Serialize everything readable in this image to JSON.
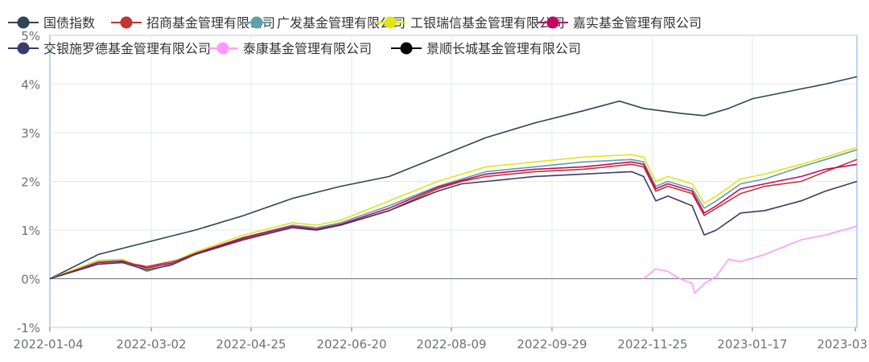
{
  "chart_data": {
    "type": "line",
    "title": "",
    "xlabel": "",
    "ylabel": "",
    "x_ticks": [
      "2022-01-04",
      "2022-03-02",
      "2022-04-25",
      "2022-06-20",
      "2022-08-09",
      "2022-09-29",
      "2022-11-25",
      "2023-01-17",
      "2023-03"
    ],
    "y_ticks": [
      "5%",
      "4%",
      "3%",
      "2%",
      "1%",
      "0%",
      "-1%"
    ],
    "ylim": [
      -1,
      5
    ],
    "y_unit": "%",
    "grid": true,
    "legend_position": "top-left",
    "series": [
      {
        "name": "国债指数",
        "color": "#2f4554",
        "points": [
          [
            0,
            0
          ],
          [
            20,
            0.5
          ],
          [
            40,
            0.75
          ],
          [
            60,
            1.0
          ],
          [
            80,
            1.3
          ],
          [
            100,
            1.65
          ],
          [
            120,
            1.9
          ],
          [
            140,
            2.1
          ],
          [
            160,
            2.5
          ],
          [
            180,
            2.9
          ],
          [
            200,
            3.2
          ],
          [
            220,
            3.45
          ],
          [
            235,
            3.65
          ],
          [
            245,
            3.5
          ],
          [
            260,
            3.4
          ],
          [
            270,
            3.35
          ],
          [
            280,
            3.5
          ],
          [
            290,
            3.7
          ],
          [
            300,
            3.8
          ],
          [
            310,
            3.9
          ],
          [
            320,
            4.0
          ],
          [
            333,
            4.15
          ]
        ]
      },
      {
        "name": "招商基金管理有限公司",
        "color": "#c23531",
        "points": [
          [
            0,
            0
          ],
          [
            20,
            0.35
          ],
          [
            30,
            0.35
          ],
          [
            40,
            0.25
          ],
          [
            50,
            0.35
          ],
          [
            60,
            0.5
          ],
          [
            80,
            0.8
          ],
          [
            100,
            1.05
          ],
          [
            110,
            1.0
          ],
          [
            120,
            1.1
          ],
          [
            140,
            1.4
          ],
          [
            160,
            1.85
          ],
          [
            170,
            2.0
          ],
          [
            180,
            2.1
          ],
          [
            200,
            2.2
          ],
          [
            220,
            2.25
          ],
          [
            240,
            2.35
          ],
          [
            245,
            2.3
          ],
          [
            250,
            1.8
          ],
          [
            255,
            1.9
          ],
          [
            265,
            1.75
          ],
          [
            270,
            1.3
          ],
          [
            275,
            1.45
          ],
          [
            285,
            1.75
          ],
          [
            295,
            1.9
          ],
          [
            310,
            2.0
          ],
          [
            320,
            2.2
          ],
          [
            333,
            2.45
          ]
        ]
      },
      {
        "name": "广发基金管理有限公司",
        "color": "#61a0a8",
        "points": [
          [
            0,
            0
          ],
          [
            20,
            0.35
          ],
          [
            30,
            0.38
          ],
          [
            40,
            0.15
          ],
          [
            50,
            0.3
          ],
          [
            60,
            0.5
          ],
          [
            80,
            0.85
          ],
          [
            100,
            1.1
          ],
          [
            110,
            1.05
          ],
          [
            120,
            1.15
          ],
          [
            140,
            1.5
          ],
          [
            160,
            1.9
          ],
          [
            170,
            2.05
          ],
          [
            180,
            2.2
          ],
          [
            200,
            2.3
          ],
          [
            220,
            2.4
          ],
          [
            240,
            2.45
          ],
          [
            245,
            2.4
          ],
          [
            250,
            1.9
          ],
          [
            255,
            2.0
          ],
          [
            265,
            1.85
          ],
          [
            270,
            1.45
          ],
          [
            275,
            1.6
          ],
          [
            285,
            1.95
          ],
          [
            295,
            2.05
          ],
          [
            310,
            2.3
          ],
          [
            320,
            2.45
          ],
          [
            333,
            2.65
          ]
        ]
      },
      {
        "name": "工银瑞信基金管理有限公司",
        "color": "#e3e31a",
        "points": [
          [
            0,
            0
          ],
          [
            20,
            0.38
          ],
          [
            30,
            0.4
          ],
          [
            40,
            0.2
          ],
          [
            50,
            0.33
          ],
          [
            60,
            0.55
          ],
          [
            80,
            0.9
          ],
          [
            100,
            1.15
          ],
          [
            110,
            1.1
          ],
          [
            120,
            1.2
          ],
          [
            140,
            1.6
          ],
          [
            160,
            2.0
          ],
          [
            170,
            2.15
          ],
          [
            180,
            2.3
          ],
          [
            200,
            2.4
          ],
          [
            220,
            2.5
          ],
          [
            240,
            2.55
          ],
          [
            245,
            2.5
          ],
          [
            250,
            2.0
          ],
          [
            255,
            2.1
          ],
          [
            265,
            1.95
          ],
          [
            270,
            1.55
          ],
          [
            275,
            1.7
          ],
          [
            285,
            2.05
          ],
          [
            295,
            2.15
          ],
          [
            310,
            2.35
          ],
          [
            320,
            2.5
          ],
          [
            333,
            2.7
          ]
        ]
      },
      {
        "name": "嘉实基金管理有限公司",
        "color": "#c1095f",
        "points": [
          [
            0,
            0
          ],
          [
            20,
            0.33
          ],
          [
            30,
            0.36
          ],
          [
            40,
            0.22
          ],
          [
            50,
            0.32
          ],
          [
            60,
            0.52
          ],
          [
            80,
            0.85
          ],
          [
            100,
            1.08
          ],
          [
            110,
            1.02
          ],
          [
            120,
            1.12
          ],
          [
            140,
            1.45
          ],
          [
            160,
            1.88
          ],
          [
            170,
            2.02
          ],
          [
            180,
            2.15
          ],
          [
            200,
            2.25
          ],
          [
            220,
            2.3
          ],
          [
            240,
            2.4
          ],
          [
            245,
            2.35
          ],
          [
            250,
            1.85
          ],
          [
            255,
            1.95
          ],
          [
            265,
            1.8
          ],
          [
            270,
            1.35
          ],
          [
            275,
            1.5
          ],
          [
            285,
            1.85
          ],
          [
            295,
            1.95
          ],
          [
            310,
            2.1
          ],
          [
            320,
            2.25
          ],
          [
            333,
            2.35
          ]
        ]
      },
      {
        "name": "交银施罗德基金管理有限公司",
        "color": "#3b3b6b",
        "points": [
          [
            0,
            0
          ],
          [
            20,
            0.3
          ],
          [
            30,
            0.33
          ],
          [
            40,
            0.18
          ],
          [
            50,
            0.28
          ],
          [
            60,
            0.5
          ],
          [
            80,
            0.82
          ],
          [
            100,
            1.05
          ],
          [
            110,
            1.0
          ],
          [
            120,
            1.1
          ],
          [
            140,
            1.4
          ],
          [
            160,
            1.8
          ],
          [
            170,
            1.95
          ],
          [
            180,
            2.0
          ],
          [
            200,
            2.1
          ],
          [
            220,
            2.15
          ],
          [
            240,
            2.2
          ],
          [
            245,
            2.1
          ],
          [
            250,
            1.6
          ],
          [
            255,
            1.7
          ],
          [
            265,
            1.5
          ],
          [
            270,
            0.9
          ],
          [
            275,
            1.0
          ],
          [
            285,
            1.35
          ],
          [
            295,
            1.4
          ],
          [
            310,
            1.6
          ],
          [
            320,
            1.8
          ],
          [
            333,
            2.0
          ]
        ]
      },
      {
        "name": "泰康基金管理有限公司",
        "color": "#ff99ff",
        "points": [
          [
            245,
            0
          ],
          [
            250,
            0.2
          ],
          [
            255,
            0.15
          ],
          [
            260,
            0.0
          ],
          [
            265,
            -0.1
          ],
          [
            266,
            -0.3
          ],
          [
            270,
            -0.1
          ],
          [
            275,
            0.05
          ],
          [
            280,
            0.4
          ],
          [
            285,
            0.35
          ],
          [
            295,
            0.5
          ],
          [
            310,
            0.8
          ],
          [
            320,
            0.9
          ],
          [
            333,
            1.08
          ]
        ]
      },
      {
        "name": "景顺长城基金管理有限公司",
        "color": "#000000",
        "points": []
      }
    ]
  }
}
